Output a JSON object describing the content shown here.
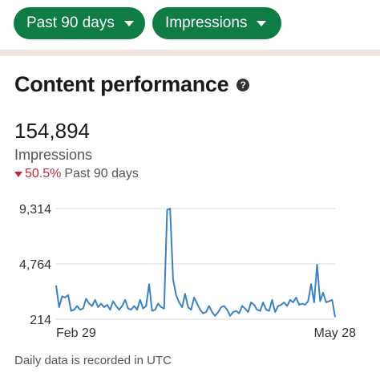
{
  "filters": {
    "period_label": "Past 90 days",
    "metric_label": "Impressions"
  },
  "section": {
    "title": "Content performance",
    "help_icon": "question-circle-icon"
  },
  "metric": {
    "value": "154,894",
    "label": "Impressions",
    "change": "50.5%",
    "change_direction": "down",
    "change_period": "Past 90 days"
  },
  "chart_data": {
    "type": "line",
    "y_ticks": [
      "9,314",
      "4,764",
      "214"
    ],
    "ylim": [
      214,
      9314
    ],
    "x_tick_labels": [
      "Feb 29",
      "May 28"
    ],
    "grid": true,
    "series": [
      {
        "values": [
          3000,
          1200,
          2100,
          2000,
          2200,
          900,
          1000,
          1300,
          1000,
          1100,
          1900,
          1500,
          1300,
          1800,
          1200,
          1500,
          1200,
          1400,
          1000,
          1700,
          1300,
          1000,
          1300,
          1800,
          1100,
          1000,
          1300,
          1000,
          1800,
          1100,
          1300,
          3100,
          900,
          1000,
          1500,
          1200,
          1100,
          9200,
          9314,
          3500,
          2200,
          1600,
          1200,
          2300,
          1200,
          1000,
          2000,
          1500,
          1000,
          700,
          800,
          1300,
          800,
          500,
          800,
          1200,
          1300,
          1000,
          500,
          800,
          900,
          700,
          1300,
          1100,
          800,
          1600,
          1400,
          1000,
          900,
          1600,
          1000,
          900,
          1800,
          800,
          1300,
          1400,
          1600,
          1300,
          1800,
          1600,
          2000,
          1400,
          1500,
          1400,
          1700,
          3100,
          1600,
          4700,
          1700,
          2400,
          1600,
          1700,
          1800,
          400
        ]
      }
    ],
    "colors": {
      "line": "#3b82c4",
      "grid": "#d9d9d9"
    }
  },
  "footnote": "Daily data is recorded in UTC",
  "colors": {
    "accent": "#0f7b45",
    "negative": "#c0283a"
  }
}
